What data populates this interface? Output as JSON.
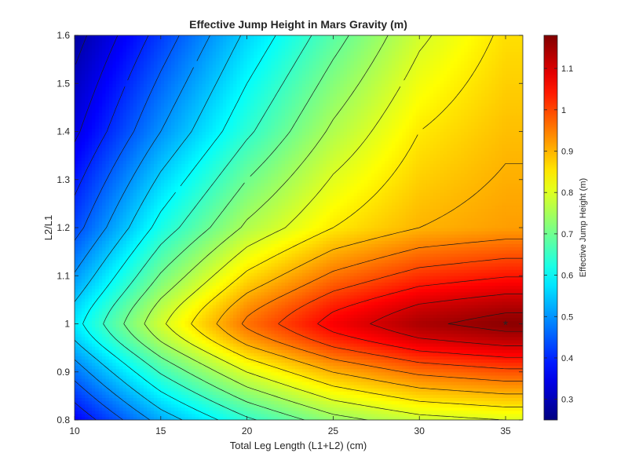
{
  "chart_data": {
    "type": "heatmap",
    "title": "Effective Jump Height in Mars Gravity (m)",
    "xlabel": "Total Leg Length (L1+L2) (cm)",
    "ylabel": "L2/L1",
    "xlim": [
      10,
      36
    ],
    "ylim": [
      0.8,
      1.6
    ],
    "x_ticks": [
      10,
      15,
      20,
      25,
      30,
      35
    ],
    "x_tick_labels": [
      "10",
      "15",
      "20",
      "25",
      "30",
      "35"
    ],
    "y_ticks": [
      0.8,
      0.9,
      1.0,
      1.1,
      1.2,
      1.3,
      1.4,
      1.5,
      1.6
    ],
    "y_tick_labels": [
      "0.8",
      "0.9",
      "1",
      "1.1",
      "1.2",
      "1.3",
      "1.4",
      "1.5",
      "1.6"
    ],
    "colormap": "jet",
    "colorbar": {
      "label": "Effective Jump Height (m)",
      "range": [
        0.25,
        1.18
      ],
      "ticks": [
        0.3,
        0.4,
        0.5,
        0.6,
        0.7,
        0.8,
        0.9,
        1.0,
        1.1
      ],
      "tick_labels": [
        "0.3",
        "0.4",
        "0.5",
        "0.6",
        "0.7",
        "0.8",
        "0.9",
        "1",
        "1.1"
      ]
    },
    "contour_levels": [
      0.3,
      0.35,
      0.4,
      0.45,
      0.5,
      0.55,
      0.6,
      0.65,
      0.7,
      0.75,
      0.8,
      0.85,
      0.9,
      0.95,
      1.0,
      1.05,
      1.1,
      1.15
    ],
    "surface_samples": {
      "x": [
        10,
        15,
        20,
        25,
        30,
        35
      ],
      "y": [
        0.8,
        1.0,
        1.2,
        1.4,
        1.6
      ],
      "z": [
        [
          0.36,
          0.52,
          0.64,
          0.73,
          0.78,
          0.8
        ],
        [
          0.58,
          0.79,
          0.96,
          1.07,
          1.14,
          1.17
        ],
        [
          0.43,
          0.62,
          0.76,
          0.85,
          0.9,
          0.92
        ],
        [
          0.34,
          0.5,
          0.64,
          0.76,
          0.85,
          0.89
        ],
        [
          0.28,
          0.42,
          0.56,
          0.68,
          0.79,
          0.86
        ]
      ]
    },
    "max_marker": {
      "x": 35,
      "y": 1.0,
      "value": 1.17,
      "symbol": "*",
      "color": "#ff2a2a"
    },
    "grid": false,
    "legend": "none"
  }
}
